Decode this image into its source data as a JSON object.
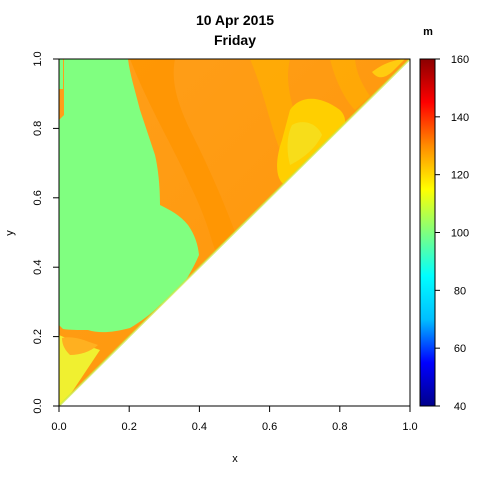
{
  "chart_data": {
    "type": "heatmap",
    "title": "10 Apr 2015",
    "subtitle": "Friday",
    "xlabel": "x",
    "ylabel": "y",
    "xlim": [
      0,
      1
    ],
    "ylim": [
      0,
      1
    ],
    "x_ticks": [
      "0.0",
      "0.2",
      "0.4",
      "0.6",
      "0.8",
      "1.0"
    ],
    "y_ticks": [
      "0.0",
      "0.2",
      "0.4",
      "0.6",
      "0.8",
      "1.0"
    ],
    "domain": "lower-right triangle (y < x is blank; data shown for y >= x)",
    "colorbar": {
      "unit": "m",
      "range": [
        40,
        160
      ],
      "ticks": [
        "40",
        "60",
        "80",
        "100",
        "120",
        "140",
        "160"
      ],
      "colormap": [
        "#00008b",
        "#0000ff",
        "#00bfff",
        "#00ffff",
        "#7fff7f",
        "#ffff00",
        "#ff8c00",
        "#ff0000",
        "#8b0000"
      ]
    },
    "regions": [
      {
        "name": "left-band",
        "value": 100,
        "color": "#80ff80"
      },
      {
        "name": "upper-right-band",
        "value": 128,
        "color": "#ffa500"
      },
      {
        "name": "diagonal-near-right",
        "value": 118,
        "color": "#ffcf00"
      },
      {
        "name": "bottom-left-corner",
        "value": 116,
        "color": "#f0f030"
      }
    ]
  }
}
